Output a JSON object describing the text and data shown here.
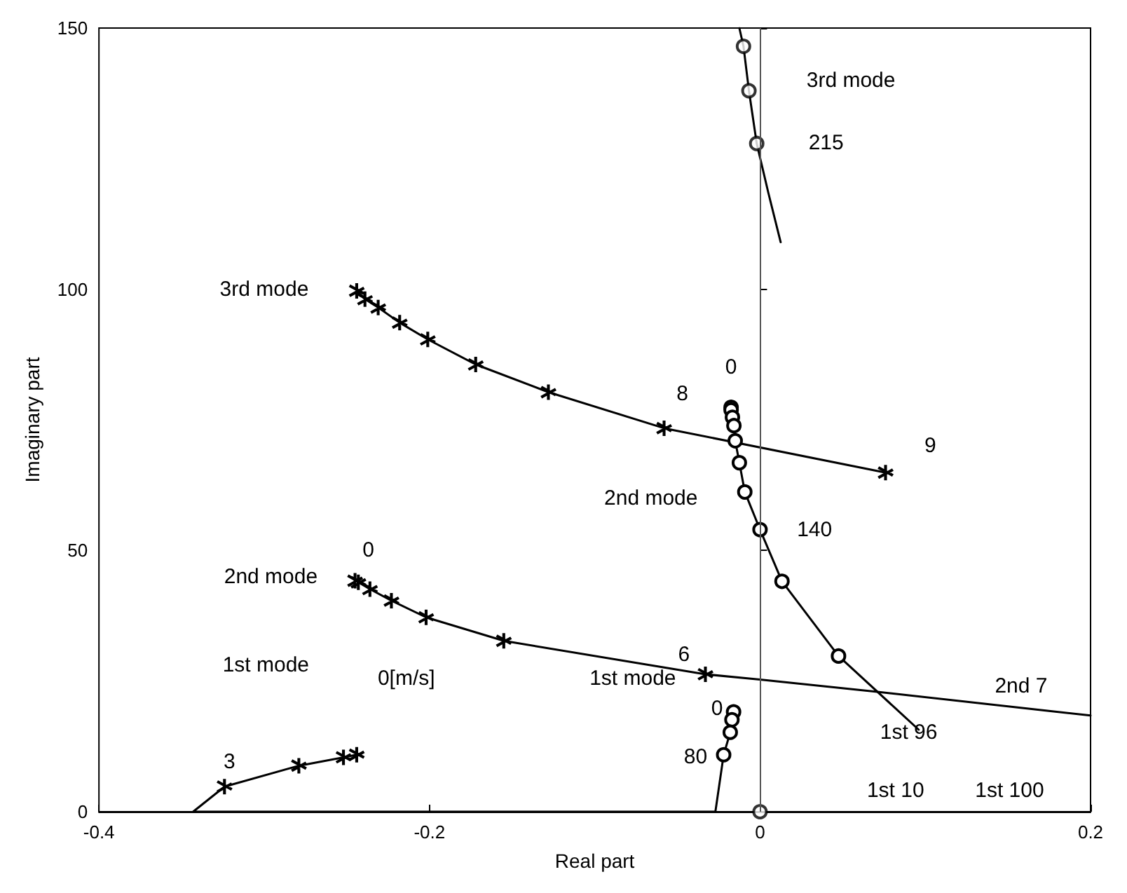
{
  "chart_data": {
    "type": "line",
    "xlabel": "Real part",
    "ylabel": "Imaginary part",
    "xlim": [
      -0.4,
      0.2
    ],
    "ylim": [
      0,
      150
    ],
    "xticks": [
      -0.4,
      -0.2,
      0,
      0.2
    ],
    "yticks": [
      0,
      50,
      100,
      150
    ],
    "grid": false,
    "line_style": "solid",
    "series": [
      {
        "color": "#000000",
        "marker": "cross",
        "x": [
          -0.244,
          -0.239,
          -0.231,
          -0.218,
          -0.201,
          -0.172,
          -0.128,
          -0.058,
          0.076
        ],
        "values": [
          99.7,
          98.1,
          96.5,
          93.6,
          90.4,
          85.6,
          80.3,
          73.4,
          64.9
        ]
      },
      {
        "color": "#000000",
        "marker": "cross",
        "x": [
          -0.245,
          -0.243,
          -0.236,
          -0.223,
          -0.202,
          -0.155,
          -0.033
        ],
        "values": [
          44.2,
          43.9,
          42.6,
          40.4,
          37.2,
          32.7,
          26.3
        ]
      },
      {
        "color": "#000000",
        "marker": "none",
        "x": [
          -0.033,
          0,
          0.072,
          0.2
        ],
        "values": [
          26.3,
          25.3,
          22.9,
          18.4
        ]
      },
      {
        "color": "#000000",
        "marker": "cross",
        "x": [
          -0.244,
          -0.252,
          -0.279,
          -0.324
        ],
        "values": [
          10.9,
          10.4,
          8.8,
          4.8
        ]
      },
      {
        "color": "#000000",
        "marker": "none",
        "x": [
          -0.324,
          -0.343,
          -0.027,
          -0.022
        ],
        "values": [
          4.8,
          0,
          0,
          10.9
        ]
      },
      {
        "color": "#000000",
        "marker": "circle",
        "x": [
          -0.016,
          -0.017,
          -0.018,
          -0.022
        ],
        "values": [
          19.1,
          17.6,
          15.2,
          10.9
        ]
      },
      {
        "type": "scatter",
        "color": "#000000",
        "marker": "circle",
        "x": [
          0
        ],
        "values": [
          0
        ]
      },
      {
        "color": "#000000",
        "marker": "circle",
        "x": [
          -0.0175,
          -0.0175,
          -0.0167,
          -0.0158,
          -0.015,
          -0.0125,
          -0.0092,
          0,
          0.0133,
          0.0475
        ],
        "values": [
          77.4,
          76.9,
          75.5,
          73.9,
          71.0,
          66.8,
          61.2,
          54.0,
          44.1,
          29.8
        ]
      },
      {
        "color": "#000000",
        "marker": "none",
        "x": [
          0.0475,
          0.096
        ],
        "values": [
          29.8,
          15.7
        ]
      },
      {
        "color": "#000000",
        "marker": "none",
        "x": [
          -0.0125,
          -0.01,
          -0.0067,
          -0.002,
          0.005,
          0.0125
        ],
        "values": [
          150,
          146.5,
          138.0,
          127.9,
          118.5,
          109
        ]
      },
      {
        "type": "scatter",
        "color": "#000000",
        "marker": "circle",
        "x": [
          -0.01,
          -0.0067,
          -0.002
        ],
        "values": [
          146.5,
          138.0,
          127.9
        ]
      }
    ],
    "ref_lines": [
      {
        "axis": "x",
        "value": 0,
        "color": "#555555"
      }
    ],
    "annotations": [
      "3rd mode",
      "215",
      "3rd mode",
      "0",
      "8",
      "9",
      "2nd mode",
      "140",
      "0",
      "2nd mode",
      "6",
      "2nd 7",
      "1st mode",
      "0[m/s]",
      "3",
      "1st mode",
      "0",
      "80",
      "1st 96",
      "1st 10",
      "1st 100"
    ]
  }
}
